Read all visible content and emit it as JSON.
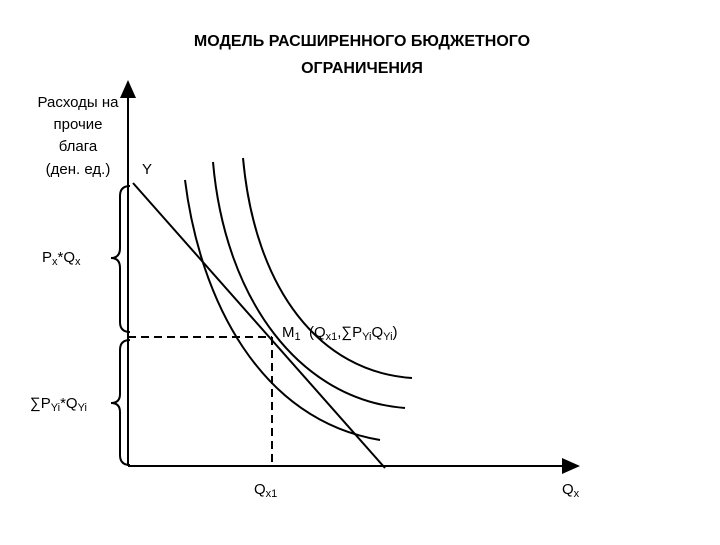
{
  "title": [
    "МОДЕЛЬ РАСШИРЕННОГО  БЮДЖЕТНОГО",
    "ОГРАНИЧЕНИЯ"
  ],
  "y_axis_label": [
    "Расходы на",
    "прочие",
    "блага",
    "(ден. ед.)"
  ],
  "y_label": "Y",
  "px_qx": [
    "P",
    "x",
    "*Q",
    "x"
  ],
  "m1_label": [
    "M",
    "1",
    "  (Q",
    "x1",
    ",∑P",
    "Yi",
    "Q",
    "Yi",
    ")"
  ],
  "spy_qy": [
    "∑P",
    "Yi",
    "*Q",
    "Yi"
  ],
  "qx1_label": [
    "Q",
    "x1"
  ],
  "qx_label": [
    "Q",
    "x"
  ]
}
